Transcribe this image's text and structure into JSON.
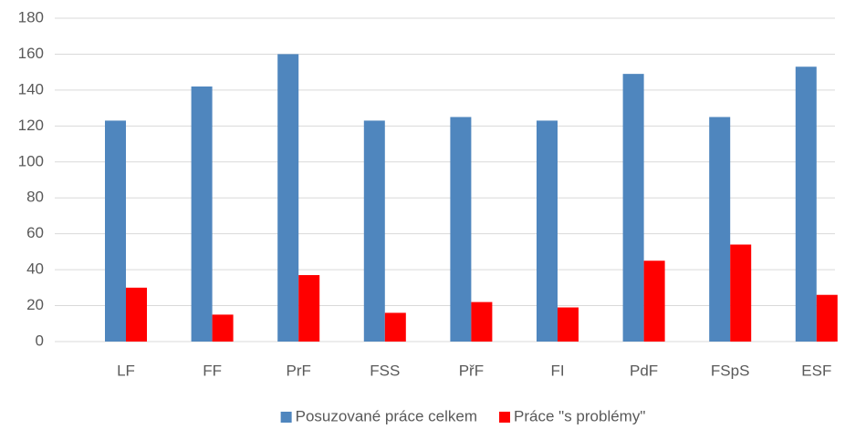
{
  "chart_data": {
    "type": "bar",
    "categories": [
      "LF",
      "FF",
      "PrF",
      "FSS",
      "PřF",
      "FI",
      "PdF",
      "FSpS",
      "ESF"
    ],
    "series": [
      {
        "name": "Posuzované práce celkem",
        "color": "#4f86be",
        "values": [
          123,
          142,
          160,
          123,
          125,
          123,
          149,
          125,
          153
        ]
      },
      {
        "name": "Práce \"s problémy\"",
        "color": "#ff0000",
        "values": [
          30,
          15,
          37,
          16,
          22,
          19,
          45,
          54,
          26
        ]
      }
    ],
    "ylim": [
      0,
      180
    ],
    "yticks": [
      0,
      20,
      40,
      60,
      80,
      100,
      120,
      140,
      160,
      180
    ],
    "grid": true,
    "legend": "bottom"
  }
}
